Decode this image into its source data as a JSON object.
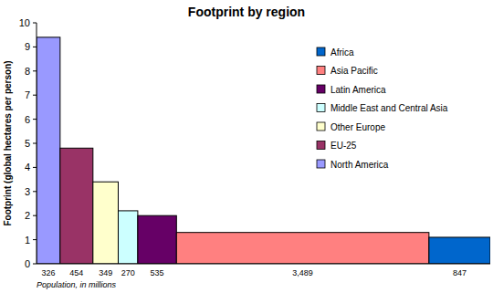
{
  "chart_data": {
    "type": "bar",
    "title": "Footprint by region",
    "y_label": "Footprint (global hectares per person)",
    "x_label": "Population, in millions",
    "categories": [
      "North America",
      "EU-25",
      "Other Europe",
      "Middle East and Central Asia",
      "Latin America",
      "Asia Pacific",
      "Africa"
    ],
    "values": [
      9.4,
      4.8,
      3.4,
      2.2,
      2.0,
      1.3,
      1.1
    ],
    "widths": [
      326,
      454,
      349,
      270,
      535,
      3489,
      847
    ],
    "width_labels": [
      "326",
      "454",
      "349",
      "270",
      "535",
      "3,489",
      "847"
    ],
    "colors": [
      "#9999ff",
      "#993366",
      "#ffffcc",
      "#ccffff",
      "#660066",
      "#ff8080",
      "#0066cc"
    ],
    "xlim": [
      0,
      6270
    ],
    "ylim": [
      0,
      10
    ],
    "yticks": [
      0,
      1,
      2,
      3,
      4,
      5,
      6,
      7,
      8,
      9,
      10
    ],
    "grid": false,
    "legend": "upper right"
  }
}
